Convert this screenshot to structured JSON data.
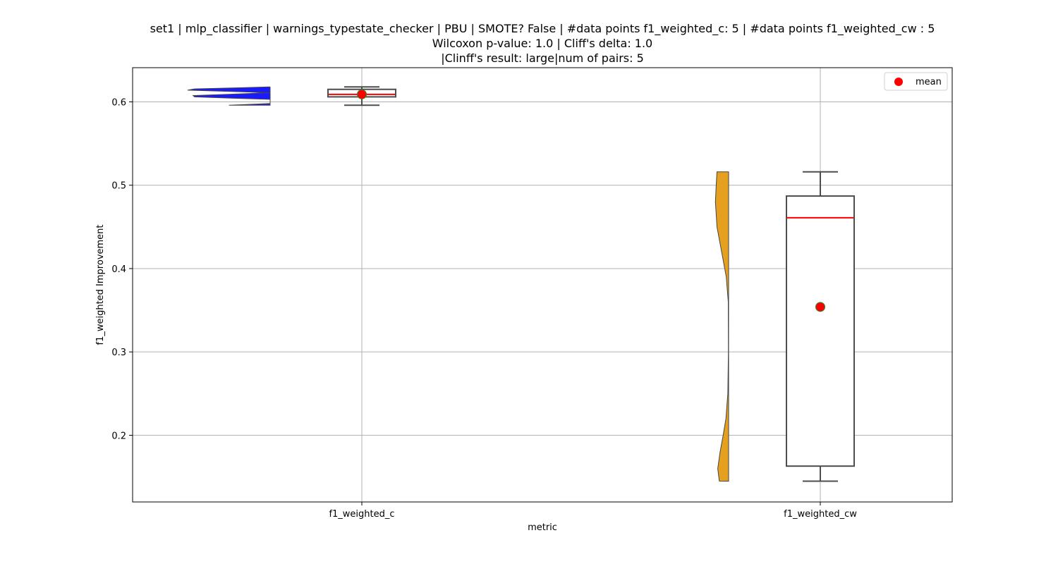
{
  "chart_data": {
    "type": "box",
    "title_lines": [
      "set1 | mlp_classifier | warnings_typestate_checker | PBU | SMOTE? False | #data points f1_weighted_c: 5 | #data points f1_weighted_cw : 5",
      "Wilcoxon p-value: 1.0 | Cliff's delta: 1.0",
      "|Clinff's result: large|num of pairs: 5"
    ],
    "xlabel": "metric",
    "ylabel": "f1_weighted Improvement",
    "categories": [
      "f1_weighted_c",
      "f1_weighted_cw"
    ],
    "ylim": [
      0.12,
      0.641
    ],
    "yticks": [
      0.2,
      0.3,
      0.4,
      0.5,
      0.6
    ],
    "ytick_labels": [
      "0.2",
      "0.3",
      "0.4",
      "0.5",
      "0.6"
    ],
    "grid": true,
    "legend": {
      "label": "mean",
      "position": "top-right"
    },
    "colors": {
      "violin_c": "#1a1aff",
      "violin_cw": "#e6a01f",
      "box_edge": "#4d4d4d",
      "median": "#ff0000",
      "mean_marker": "#ff0000",
      "mean_edge": "#2e8b2e",
      "grid": "#b0b0b0"
    },
    "boxes": [
      {
        "category": "f1_weighted_c",
        "whisker_low": 0.596,
        "q1": 0.606,
        "median": 0.609,
        "q3": 0.615,
        "whisker_high": 0.618,
        "mean": 0.609
      },
      {
        "category": "f1_weighted_cw",
        "whisker_low": 0.145,
        "q1": 0.163,
        "median": 0.461,
        "q3": 0.487,
        "whisker_high": 0.516,
        "mean": 0.354
      }
    ],
    "violins": [
      {
        "category": "f1_weighted_c",
        "ymin": 0.596,
        "ymax": 0.618,
        "profile": [
          [
            0.596,
            0.3
          ],
          [
            0.598,
            0.0
          ],
          [
            0.603,
            0.0
          ],
          [
            0.6045,
            0.28
          ],
          [
            0.606,
            0.55
          ],
          [
            0.6075,
            0.56
          ],
          [
            0.609,
            0.3
          ],
          [
            0.611,
            0.0
          ],
          [
            0.6125,
            0.28
          ],
          [
            0.614,
            0.6
          ],
          [
            0.6155,
            0.55
          ],
          [
            0.617,
            0.2
          ],
          [
            0.618,
            0.0
          ]
        ]
      },
      {
        "category": "f1_weighted_cw",
        "ymin": 0.145,
        "ymax": 0.516,
        "profile": [
          [
            0.145,
            0.12
          ],
          [
            0.16,
            0.14
          ],
          [
            0.18,
            0.11
          ],
          [
            0.2,
            0.07
          ],
          [
            0.22,
            0.035
          ],
          [
            0.25,
            0.01
          ],
          [
            0.3,
            0.003
          ],
          [
            0.36,
            0.005
          ],
          [
            0.39,
            0.03
          ],
          [
            0.42,
            0.09
          ],
          [
            0.45,
            0.15
          ],
          [
            0.48,
            0.17
          ],
          [
            0.5,
            0.16
          ],
          [
            0.516,
            0.15
          ]
        ]
      }
    ]
  }
}
